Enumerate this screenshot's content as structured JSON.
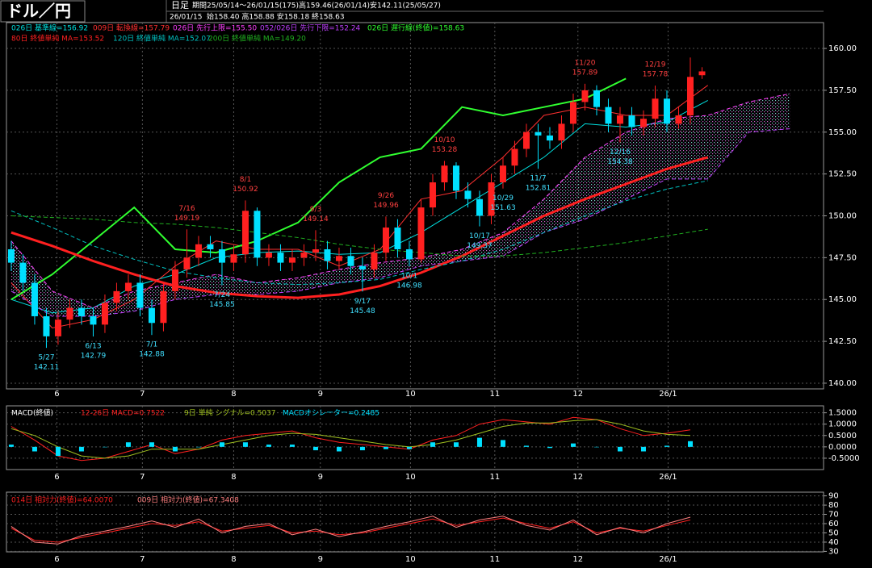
{
  "chart_data": [
    {
      "type": "candlestick",
      "title": "ドル／円",
      "period_label": "日足",
      "period": "期間25/05/14～26/01/15(175)高159.46(26/01/14)安142.11(25/05/27)",
      "date": "26/01/15",
      "ohlc_text": "始158.40 高158.88 安158.18 終158.63",
      "up_color": "#ff2020",
      "down_color": "#00e0ff",
      "grid": true,
      "xlim": [
        -0.41,
        69.38
      ],
      "ylim": [
        139.66,
        160.87
      ],
      "yticks": [
        {
          "value": 140,
          "label": "140.00"
        },
        {
          "value": 142.5,
          "label": "142.50"
        },
        {
          "value": 145,
          "label": "145.00"
        },
        {
          "value": 147.5,
          "label": "147.50"
        },
        {
          "value": 150,
          "label": "150.00"
        },
        {
          "value": 152.5,
          "label": "152.50"
        },
        {
          "value": 155,
          "label": "155.00"
        },
        {
          "value": 157.5,
          "label": "157.50"
        },
        {
          "value": 160,
          "label": "160.00"
        }
      ],
      "xticks": [
        {
          "value": 3.9,
          "label": "6"
        },
        {
          "value": 11.2,
          "label": "7"
        },
        {
          "value": 19,
          "label": "8"
        },
        {
          "value": 26.4,
          "label": "9"
        },
        {
          "value": 34.1,
          "label": "10"
        },
        {
          "value": 41.3,
          "label": "11"
        },
        {
          "value": 48.4,
          "label": "12"
        },
        {
          "value": 56.1,
          "label": "26/1"
        }
      ],
      "open": [
        148.0,
        147.2,
        146.0,
        144.0,
        142.8,
        143.8,
        144.5,
        144.0,
        143.5,
        144.8,
        145.5,
        146.0,
        144.5,
        143.6,
        145.5,
        146.8,
        147.5,
        148.3,
        148.0,
        147.2,
        147.7,
        150.3,
        147.5,
        147.8,
        147.2,
        147.5,
        147.8,
        148.0,
        147.3,
        147.6,
        147.0,
        146.8,
        147.8,
        149.3,
        148.0,
        147.4,
        150.5,
        152.0,
        153.0,
        151.5,
        151.0,
        150.0,
        152.0,
        153.0,
        154.0,
        155.0,
        154.8,
        154.5,
        155.5,
        156.8,
        157.5,
        156.5,
        155.5,
        156.0,
        155.3,
        155.8,
        157.0,
        155.5,
        156.0,
        158.4
      ],
      "high": [
        148.5,
        147.7,
        146.5,
        144.5,
        144.3,
        145.0,
        145.0,
        144.5,
        145.3,
        146.0,
        146.5,
        146.5,
        145.0,
        146.0,
        147.3,
        149.19,
        148.8,
        148.8,
        148.5,
        148.2,
        150.92,
        150.5,
        148.3,
        148.3,
        148.0,
        148.3,
        149.14,
        148.5,
        148.1,
        148.1,
        147.5,
        148.3,
        149.96,
        149.8,
        148.5,
        151.0,
        152.5,
        153.28,
        153.2,
        152.0,
        151.5,
        152.5,
        153.5,
        154.48,
        155.5,
        155.5,
        155.3,
        156.0,
        157.3,
        157.89,
        157.8,
        157.0,
        156.5,
        156.5,
        156.3,
        157.78,
        157.5,
        156.5,
        159.46,
        158.88
      ],
      "low": [
        146.7,
        145.5,
        143.5,
        142.11,
        142.3,
        143.3,
        143.5,
        142.79,
        143.0,
        144.3,
        145.0,
        144.0,
        142.88,
        143.1,
        145.0,
        146.3,
        147.0,
        147.5,
        145.85,
        146.7,
        147.2,
        147.0,
        147.0,
        146.7,
        146.7,
        147.0,
        147.3,
        146.8,
        146.8,
        146.5,
        145.48,
        146.3,
        147.3,
        147.5,
        146.98,
        147.2,
        150.0,
        151.5,
        151.0,
        150.5,
        149.37,
        149.5,
        151.63,
        152.5,
        153.5,
        152.81,
        154.0,
        154.0,
        155.0,
        156.3,
        156.0,
        155.0,
        154.38,
        154.8,
        154.8,
        155.3,
        155.0,
        155.2,
        155.5,
        158.18
      ],
      "close": [
        147.2,
        146.0,
        144.0,
        142.8,
        143.8,
        144.5,
        144.0,
        143.5,
        144.8,
        145.5,
        146.0,
        144.5,
        143.6,
        145.5,
        146.8,
        147.5,
        148.3,
        148.0,
        147.2,
        147.7,
        150.3,
        147.5,
        147.8,
        147.2,
        147.5,
        147.8,
        148.0,
        147.3,
        147.6,
        147.0,
        146.8,
        147.8,
        149.3,
        148.0,
        147.4,
        150.5,
        152.0,
        153.0,
        151.5,
        151.0,
        150.0,
        152.0,
        153.0,
        154.0,
        155.0,
        154.8,
        154.5,
        155.5,
        156.8,
        157.5,
        156.5,
        155.5,
        156.0,
        155.3,
        155.8,
        157.0,
        155.5,
        156.0,
        158.3,
        158.63
      ],
      "series": [
        {
          "name": "026日 基準線=156.92",
          "color": "#00e0e0",
          "width": 1,
          "dashed": false,
          "values": [
            145.0,
            144.2,
            144.5,
            145.8,
            146.5,
            147.5,
            147.8,
            147.9,
            147.7,
            147.8,
            149.0,
            150.5,
            152.0,
            153.5,
            155.5,
            155.3,
            155.6,
            156.9,
            null,
            null
          ]
        },
        {
          "name": "009日 転換線=157.79",
          "color": "#ff3030",
          "width": 1,
          "dashed": false,
          "values": [
            146.0,
            143.3,
            143.8,
            145.0,
            147.0,
            148.5,
            148.0,
            148.0,
            147.0,
            148.0,
            151.0,
            151.5,
            153.5,
            156.0,
            156.5,
            156.0,
            156.0,
            157.8,
            null,
            null
          ]
        },
        {
          "name": "026日 先行上限=155.50",
          "color": "#ff40ff",
          "width": 1,
          "dashed": true,
          "values": [
            148.5,
            145.5,
            144.5,
            145.5,
            146.0,
            146.5,
            146.0,
            146.3,
            146.8,
            147.2,
            147.5,
            148.0,
            149.0,
            151.0,
            153.5,
            155.0,
            155.8,
            156.0,
            156.8,
            157.3
          ]
        },
        {
          "name": "052/026日 先行下限=152.24",
          "color": "#c040ff",
          "width": 1,
          "dashed": true,
          "values": [
            145.5,
            144.0,
            144.0,
            144.3,
            145.0,
            145.3,
            145.3,
            145.5,
            146.0,
            146.3,
            147.0,
            147.3,
            147.6,
            149.0,
            149.8,
            151.0,
            152.2,
            152.2,
            155.0,
            155.2
          ]
        },
        {
          "name": "026日 遅行線(終値)=158.63",
          "color": "#30ff30",
          "width": 2,
          "dashed": false,
          "values": [
            145.0,
            146.5,
            148.5,
            150.5,
            148.0,
            147.8,
            148.5,
            149.6,
            152.0,
            153.5,
            154.0,
            156.5,
            156.0,
            156.5,
            157.0,
            158.2,
            null,
            null,
            null,
            null
          ]
        },
        {
          "name": "80日 終値単純 MA=153.52",
          "color": "#ff2020",
          "width": 3,
          "dashed": false,
          "values": [
            149.0,
            148.2,
            147.3,
            146.5,
            145.8,
            145.4,
            145.2,
            145.1,
            145.3,
            145.8,
            146.6,
            147.6,
            148.8,
            150.0,
            151.0,
            151.9,
            152.8,
            153.5,
            null,
            null
          ]
        },
        {
          "name": "120日 終値単純 MA=152.07",
          "color": "#00c0c0",
          "width": 1,
          "dashed": true,
          "values": [
            150.3,
            149.3,
            148.2,
            147.4,
            146.7,
            146.3,
            146.0,
            145.9,
            146.0,
            146.2,
            146.8,
            147.3,
            148.0,
            149.0,
            150.0,
            150.9,
            151.6,
            152.1,
            null,
            null
          ]
        },
        {
          "name": "200日 終値単純 MA=149.20",
          "color": "#20b020",
          "width": 1,
          "dashed": true,
          "values": [
            150.0,
            149.9,
            149.8,
            149.6,
            149.5,
            149.3,
            149.0,
            148.7,
            148.3,
            148.0,
            147.8,
            147.6,
            147.6,
            147.8,
            148.1,
            148.4,
            148.8,
            149.2,
            null,
            null
          ]
        }
      ],
      "annotations": [
        {
          "date": "5/27",
          "value": 142.11
        },
        {
          "date": "6/13",
          "value": 142.79
        },
        {
          "date": "7/1",
          "value": 142.88
        },
        {
          "date": "7/16",
          "value": 149.19
        },
        {
          "date": "7/24",
          "value": 145.85
        },
        {
          "date": "8/1",
          "value": 150.92
        },
        {
          "date": "9/3",
          "value": 149.14
        },
        {
          "date": "9/17",
          "value": 145.48
        },
        {
          "date": "9/26",
          "value": 149.96
        },
        {
          "date": "10/1",
          "value": 146.98
        },
        {
          "date": "10/10",
          "value": 153.28
        },
        {
          "date": "10/17",
          "value": 149.37
        },
        {
          "date": "10/29",
          "value": 151.63
        },
        {
          "date": "11/7",
          "value": 152.81
        },
        {
          "date": "11/20",
          "value": 157.89
        },
        {
          "date": "12/16",
          "value": 154.38
        },
        {
          "date": "12/19",
          "value": 157.78
        }
      ]
    },
    {
      "type": "indicator",
      "title": "MACD(終値)",
      "grid": true,
      "xlim": [
        -0.41,
        69.38
      ],
      "ylim": [
        -1.0,
        1.7
      ],
      "yticks": [
        {
          "value": 1.5,
          "label": "1.5000"
        },
        {
          "value": 1.0,
          "label": "1.0000"
        },
        {
          "value": 0.5,
          "label": "0.5000"
        },
        {
          "value": 0,
          "label": "0.0000"
        },
        {
          "value": -0.5,
          "label": "-0.5000"
        }
      ],
      "xticks": [
        {
          "value": 3.9,
          "label": "6"
        },
        {
          "value": 11.2,
          "label": "7"
        },
        {
          "value": 19,
          "label": "8"
        },
        {
          "value": 26.4,
          "label": "9"
        },
        {
          "value": 34.1,
          "label": "10"
        },
        {
          "value": 41.3,
          "label": "11"
        },
        {
          "value": 48.4,
          "label": "12"
        },
        {
          "value": 56.1,
          "label": "26/1"
        }
      ],
      "series": [
        {
          "name": "12-26日 MACD=0.7522",
          "color": "#ff2020",
          "type": "line",
          "values": [
            0.9,
            0.3,
            -0.4,
            -0.6,
            -0.5,
            -0.2,
            0.1,
            -0.3,
            -0.1,
            0.3,
            0.5,
            0.6,
            0.7,
            0.4,
            0.2,
            0.1,
            0.0,
            -0.1,
            0.3,
            0.5,
            1.0,
            1.2,
            1.1,
            1.0,
            1.3,
            1.2,
            0.8,
            0.5,
            0.6,
            0.75
          ]
        },
        {
          "name": "9日 単純 シグナル=0.5037",
          "color": "#a0c020",
          "type": "line",
          "values": [
            0.8,
            0.5,
            0.0,
            -0.4,
            -0.5,
            -0.4,
            -0.1,
            -0.1,
            -0.1,
            0.1,
            0.3,
            0.5,
            0.6,
            0.55,
            0.4,
            0.25,
            0.1,
            0.0,
            0.1,
            0.3,
            0.6,
            0.9,
            1.05,
            1.05,
            1.15,
            1.2,
            1.0,
            0.7,
            0.55,
            0.5
          ]
        },
        {
          "name": "MACDオシレーター=0.2485",
          "color": "#00e0ff",
          "type": "bar",
          "values": [
            0.1,
            -0.2,
            -0.4,
            -0.2,
            0.0,
            0.2,
            0.2,
            -0.2,
            0.0,
            0.2,
            0.2,
            0.1,
            0.1,
            -0.15,
            -0.2,
            -0.15,
            -0.1,
            -0.1,
            0.2,
            0.2,
            0.4,
            0.3,
            0.05,
            -0.05,
            0.15,
            0.0,
            -0.2,
            -0.2,
            0.05,
            0.25
          ]
        }
      ]
    },
    {
      "type": "indicator",
      "grid": true,
      "xlim": [
        -0.41,
        69.38
      ],
      "ylim": [
        29.5,
        90.5
      ],
      "yticks": [
        30,
        40,
        50,
        60,
        70,
        80,
        90
      ],
      "xticks": [
        {
          "value": 3.9,
          "label": "6"
        },
        {
          "value": 11.2,
          "label": "7"
        },
        {
          "value": 19,
          "label": "8"
        },
        {
          "value": 26.4,
          "label": "9"
        },
        {
          "value": 34.1,
          "label": "10"
        },
        {
          "value": 41.3,
          "label": "11"
        },
        {
          "value": 48.4,
          "label": "12"
        },
        {
          "value": 56.1,
          "label": "26/1"
        }
      ],
      "series": [
        {
          "name": "014日 相対力(終値)=64.0070",
          "color": "#ff2020",
          "type": "line",
          "values": [
            55,
            42,
            40,
            45,
            50,
            55,
            60,
            58,
            62,
            52,
            55,
            58,
            50,
            52,
            48,
            50,
            55,
            60,
            65,
            58,
            62,
            66,
            60,
            55,
            62,
            50,
            55,
            52,
            58,
            64
          ]
        },
        {
          "name": "009日 相対力(終値)=67.3408",
          "color": "#ff8080",
          "type": "line",
          "values": [
            57,
            40,
            38,
            47,
            52,
            57,
            63,
            56,
            65,
            50,
            57,
            60,
            48,
            54,
            46,
            51,
            57,
            62,
            68,
            56,
            64,
            68,
            58,
            53,
            64,
            48,
            56,
            50,
            60,
            67
          ]
        }
      ]
    }
  ]
}
